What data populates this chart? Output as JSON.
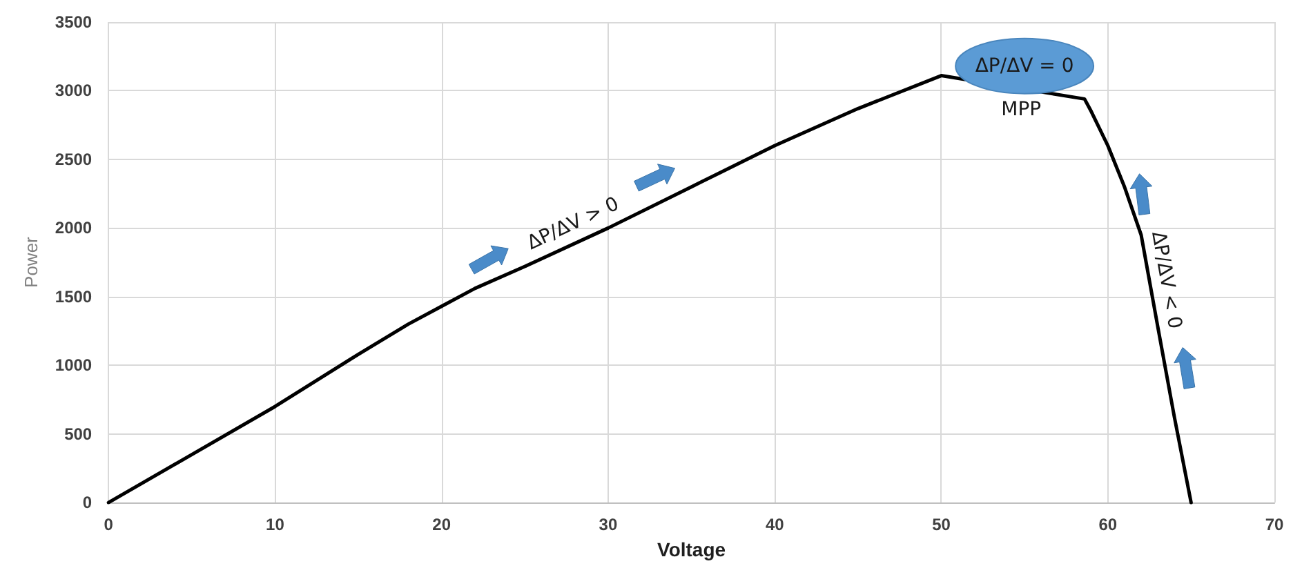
{
  "chart_data": {
    "type": "line",
    "xlabel": "Voltage",
    "ylabel": "Power",
    "x": [
      0,
      5,
      10,
      15,
      18,
      20,
      22,
      25,
      30,
      35,
      40,
      45,
      50,
      58.6,
      59,
      60,
      61,
      62,
      63,
      64,
      65
    ],
    "series": [
      {
        "color": "#000000",
        "values": [
          0,
          350,
          700,
          1080,
          1300,
          1430,
          1560,
          1720,
          2000,
          2300,
          2600,
          2870,
          3110,
          2940,
          2850,
          2600,
          2300,
          1950,
          1280,
          620,
          0
        ]
      }
    ],
    "xlim": [
      0,
      70
    ],
    "xticks": [
      0,
      10,
      20,
      30,
      40,
      50,
      60,
      70
    ],
    "ylim": [
      0,
      3500
    ],
    "yticks": [
      0,
      500,
      1000,
      1500,
      2000,
      2500,
      3000,
      3500
    ],
    "grid": true,
    "marker": "none",
    "line_style": "solid",
    "annotations": [
      "ΔP/ΔV > 0",
      "ΔP/ΔV = 0",
      "MPP",
      "ΔP/ΔV < 0"
    ]
  }
}
